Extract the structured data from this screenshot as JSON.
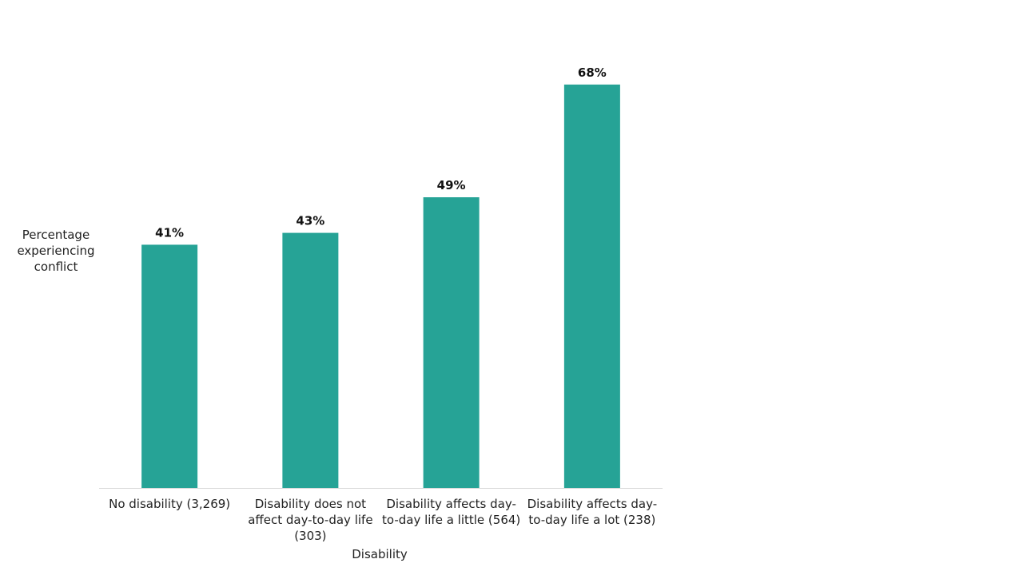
{
  "chart_data": {
    "type": "bar",
    "y_label": "Percentage experiencing conflict",
    "x_label": "Disability",
    "categories": [
      "No disability (3,269)",
      "Disability does not affect day-to-day life (303)",
      "Disability affects day-to-day life a little (564)",
      "Disability affects day-to-day life a lot (238)"
    ],
    "values": [
      41,
      43,
      49,
      68
    ],
    "value_labels": [
      "41%",
      "43%",
      "49%",
      "68%"
    ],
    "color": "#26a396",
    "ylim": [
      0,
      70
    ]
  }
}
